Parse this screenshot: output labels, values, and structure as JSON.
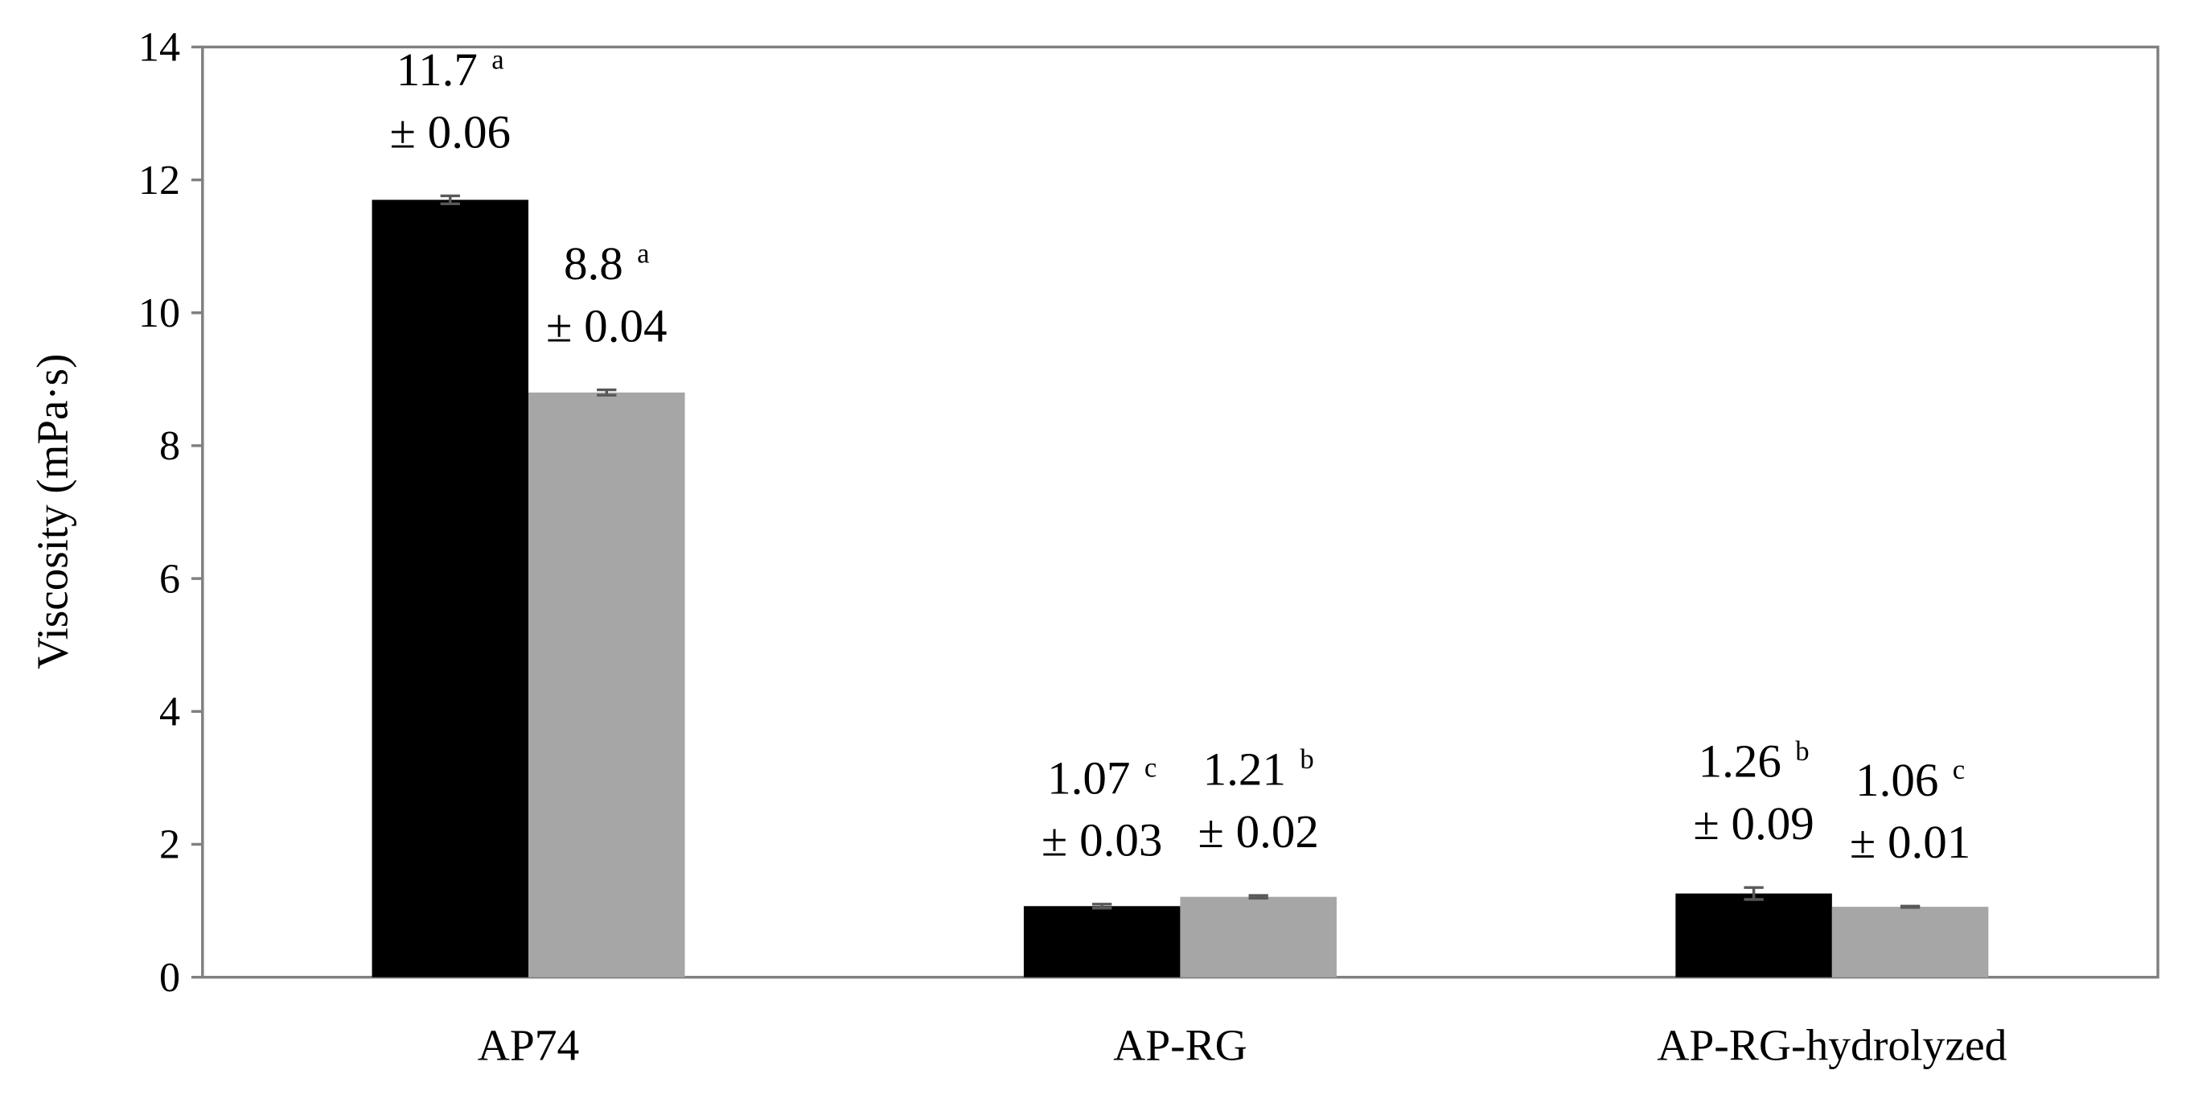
{
  "chart_data": {
    "type": "bar",
    "y_label": "Viscosity (mPa·s)",
    "categories": [
      "AP74",
      "AP-RG",
      "AP-RG-hydrolyzed"
    ],
    "series": [
      {
        "color": "#000000",
        "values": [
          11.7,
          1.07,
          1.26
        ],
        "errors": [
          0.06,
          0.03,
          0.09
        ],
        "error_labels": [
          "± 0.06",
          "± 0.03",
          "± 0.09"
        ],
        "letters": [
          "a",
          "c",
          "b"
        ]
      },
      {
        "color": "#a6a6a6",
        "values": [
          8.8,
          1.21,
          1.06
        ],
        "errors": [
          0.04,
          0.02,
          0.01
        ],
        "error_labels": [
          "± 0.04",
          "± 0.02",
          "± 0.01"
        ],
        "letters": [
          "a",
          "b",
          "c"
        ]
      }
    ],
    "ylim": [
      0,
      14
    ],
    "yticks": [
      0,
      2,
      4,
      6,
      8,
      10,
      12,
      14
    ]
  }
}
